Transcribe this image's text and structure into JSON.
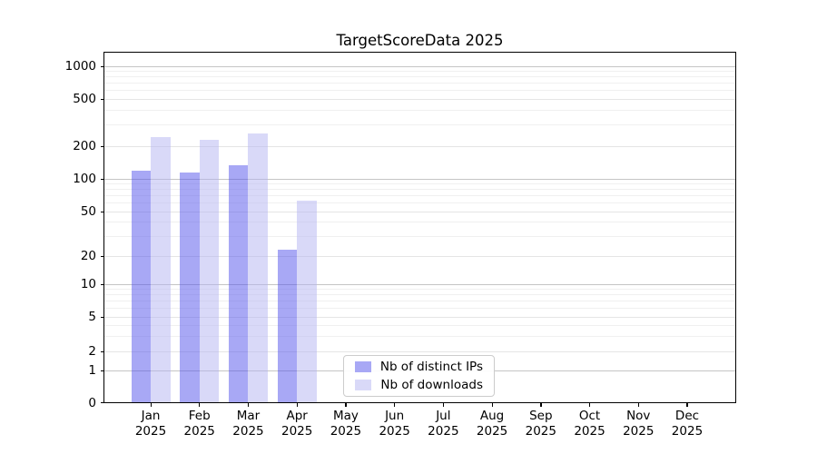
{
  "chart_data": {
    "type": "bar",
    "title": "TargetScoreData 2025",
    "yscale": "symlog",
    "ylim": [
      0,
      1300
    ],
    "grid": true,
    "legend_position": "bottom-center",
    "yticks": [
      0,
      1,
      2,
      5,
      10,
      20,
      50,
      100,
      200,
      500,
      1000
    ],
    "categories": [
      "Jan\n2025",
      "Feb\n2025",
      "Mar\n2025",
      "Apr\n2025",
      "May\n2025",
      "Jun\n2025",
      "Jul\n2025",
      "Aug\n2025",
      "Sep\n2025",
      "Oct\n2025",
      "Nov\n2025",
      "Dec\n2025"
    ],
    "series": [
      {
        "name": "Nb of distinct IPs",
        "color": "#a8a8f5",
        "fill": "rgba(82,82,235,0.5)",
        "values": [
          120,
          114,
          133,
          23,
          null,
          null,
          null,
          null,
          null,
          null,
          null,
          null
        ]
      },
      {
        "name": "Nb of downloads",
        "color": "#d9d9f8",
        "fill": "rgba(180,180,242,0.5)",
        "values": [
          238,
          225,
          258,
          63,
          null,
          null,
          null,
          null,
          null,
          null,
          null,
          null
        ]
      }
    ],
    "grid_colors": {
      "major": "#c5c5c5",
      "labeled_minor": "#e5e5e5",
      "minor": "#f0f0f0"
    }
  }
}
